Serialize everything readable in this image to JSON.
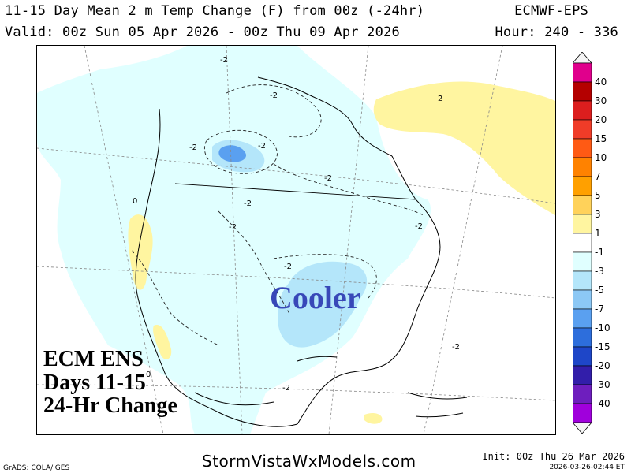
{
  "header": {
    "title": "11-15 Day Mean 2 m Temp Change (F) from 00z (-24hr)",
    "model": "ECMWF-EPS",
    "valid": "Valid: 00z Sun 05 Apr 2026 - 00z Thu 09 Apr 2026",
    "hours": "Hour: 240 - 336"
  },
  "map": {
    "overlay_lines": [
      "ECM ENS",
      "Days 11-15",
      "24-Hr Change"
    ],
    "annotation": "Cooler",
    "contour_labels": [
      "-2",
      "-2",
      "-2",
      "-2",
      "-2",
      "-2",
      "-2",
      "-2",
      "-2",
      "-2",
      "2",
      "-2",
      "0",
      "0"
    ]
  },
  "colorbar": {
    "labels": [
      "40",
      "30",
      "20",
      "15",
      "10",
      "7",
      "5",
      "3",
      "1",
      "-1",
      "-3",
      "-5",
      "-7",
      "-10",
      "-15",
      "-20",
      "-30",
      "-40"
    ],
    "colors": [
      "#f5f5f5",
      "#e0008c",
      "#b40000",
      "#dc1e1e",
      "#f03c28",
      "#ff5a14",
      "#ff8200",
      "#ffa000",
      "#ffd25a",
      "#fff5a0",
      "#ffffff",
      "#e0ffff",
      "#b4e6fa",
      "#8cc8f5",
      "#5aa0f0",
      "#2d6edc",
      "#1e46c8",
      "#321eaa",
      "#6e1ebe",
      "#a000dc",
      "#f5f5f5"
    ]
  },
  "footer": {
    "credit": "GrADS: COLA/IGES",
    "site": "StormVistaWxModels.com",
    "init": "Init: 00z Thu 26 Mar 2026",
    "timestamp": "2026-03-26-02:44 ET"
  }
}
